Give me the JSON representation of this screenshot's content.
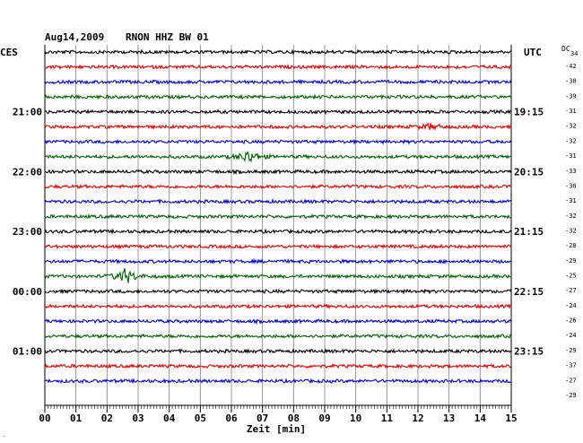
{
  "header": {
    "date": "Aug14,2009",
    "station": "RNON HHZ BW 01",
    "left_zone": "CES",
    "right_zone": "UTC",
    "dc_label_top": "DC",
    "dc_label_sub": "34"
  },
  "left_time_labels": [
    "21:00",
    "22:00",
    "23:00",
    "00:00",
    "01:00"
  ],
  "right_time_labels": [
    "19:15",
    "20:15",
    "21:15",
    "22:15",
    "23:15"
  ],
  "dc_values": [
    "-42",
    "-38",
    "-39",
    "-31",
    "-32",
    "-32",
    "-31",
    "-33",
    "-30",
    "-31",
    "-32",
    "-32",
    "-28",
    "-29",
    "-25",
    "-27",
    "-24",
    "-26",
    "-24",
    "-29",
    "-37",
    "-27",
    "-29"
  ],
  "x_tick_labels": [
    "00",
    "01",
    "02",
    "03",
    "04",
    "05",
    "06",
    "07",
    "08",
    "09",
    "10",
    "11",
    "12",
    "13",
    "14",
    "15"
  ],
  "x_axis_label": "Zeit [min]",
  "colors": {
    "cycle": [
      "#000000",
      "#e00000",
      "#0000d0",
      "#006000"
    ],
    "grid": "#808080"
  },
  "events": [
    {
      "trace": 7,
      "minute": 6.55,
      "amplitude": 7,
      "color": "#006000"
    },
    {
      "trace": 15,
      "minute": 2.6,
      "amplitude": 9,
      "color": "#006000"
    },
    {
      "trace": 5,
      "minute": 12.4,
      "amplitude": 3,
      "color": "#e00000"
    }
  ]
}
